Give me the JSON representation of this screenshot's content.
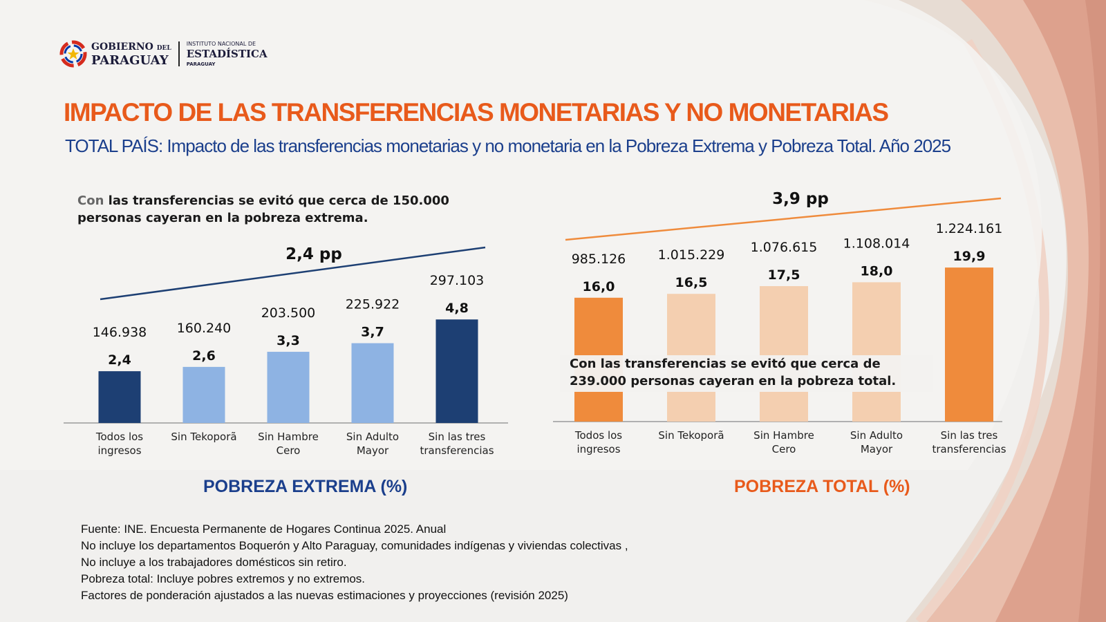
{
  "logo": {
    "gobierno_line1": "GOBIERNO",
    "gobierno_del": "DEL",
    "gobierno_line2": "PARAGUAY",
    "ine_line1": "INSTITUTO NACIONAL DE",
    "ine_line2": "ESTADÍSTICA",
    "ine_line3": "PARAGUAY"
  },
  "title": "IMPACTO DE LAS TRANSFERENCIAS MONETARIAS Y NO MONETARIAS",
  "subtitle": "TOTAL PAÍS: Impacto de las transferencias monetarias y no monetaria en la Pobreza Extrema y Pobreza Total. Año 2025",
  "left_note": {
    "con": "Con",
    "text": " las transferencias se evitó que cerca de 150.000 personas cayeran en la pobreza extrema."
  },
  "right_note": {
    "con": "Con",
    "text": " las transferencias se evitó que cerca de 239.000 personas cayeran en la pobreza total."
  },
  "sources": [
    "Fuente: INE. Encuesta Permanente de Hogares Continua 2025. Anual",
    "No incluye los departamentos Boquerón y Alto Paraguay, comunidades indígenas y viviendas colectivas ,",
    "No incluye a los trabajadores domésticos sin retiro.",
    "Pobreza total: Incluye pobres extremos y no extremos.",
    "Factores de ponderación ajustados a las nuevas estimaciones y proyecciones (revisión 2025)"
  ],
  "colors": {
    "title": "#e85a1b",
    "subtitle": "#1b3f8c",
    "extrema_dark": "#1d3f73",
    "extrema_light": "#8eb3e3",
    "total_dark": "#ef8b3c",
    "total_light": "#f4cfb0",
    "total_line": "#ef8b3c",
    "extrema_line": "#1d3f73"
  },
  "chart_data": [
    {
      "type": "bar",
      "title": "POBREZA EXTREMA (%)",
      "categories": [
        "Todos los ingresos",
        "Sin Tekoporã",
        "Sin Hambre Cero",
        "Sin Adulto Mayor",
        "Sin las tres transferencias"
      ],
      "values": [
        2.4,
        2.6,
        3.3,
        3.7,
        4.8
      ],
      "value_labels": [
        "2,4",
        "2,6",
        "3,3",
        "3,7",
        "4,8"
      ],
      "persons": [
        "146.938",
        "160.240",
        "203.500",
        "225.922",
        "297.103"
      ],
      "highlight": [
        true,
        false,
        false,
        false,
        true
      ],
      "difference_label": "2,4 pp",
      "ylim": [
        0,
        5
      ]
    },
    {
      "type": "bar",
      "title": "POBREZA TOTAL (%)",
      "categories": [
        "Todos los ingresos",
        "Sin Tekoporã",
        "Sin Hambre Cero",
        "Sin Adulto Mayor",
        "Sin las tres transferencias"
      ],
      "values": [
        16.0,
        16.5,
        17.5,
        18.0,
        19.9
      ],
      "value_labels": [
        "16,0",
        "16,5",
        "17,5",
        "18,0",
        "19,9"
      ],
      "persons": [
        "985.126",
        "1.015.229",
        "1.076.615",
        "1.108.014",
        "1.224.161"
      ],
      "highlight": [
        true,
        false,
        false,
        false,
        true
      ],
      "difference_label": "3,9 pp",
      "ylim": [
        0,
        20
      ]
    }
  ]
}
